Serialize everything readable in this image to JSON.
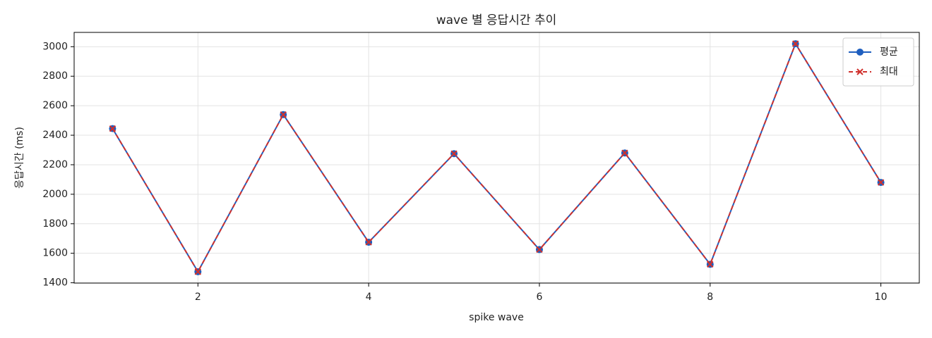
{
  "chart_data": {
    "type": "line",
    "title": "wave 별 응답시간 추이",
    "x_label": "spike wave",
    "y_label": "응답시간 (ms)",
    "x": [
      1,
      2,
      3,
      4,
      5,
      6,
      7,
      8,
      9,
      10
    ],
    "series": [
      {
        "name": "평균",
        "color": "#1f5fbf",
        "linestyle": "solid",
        "marker": "circle",
        "values": [
          2445,
          1475,
          2540,
          1675,
          2275,
          1625,
          2280,
          1525,
          3020,
          2080
        ]
      },
      {
        "name": "최대",
        "color": "#d0312d",
        "linestyle": "dashed",
        "marker": "x",
        "values": [
          2445,
          1475,
          2540,
          1675,
          2275,
          1625,
          2280,
          1525,
          3020,
          2080
        ]
      }
    ],
    "xlim": [
      0.55,
      10.45
    ],
    "ylim": [
      1398,
      3097
    ],
    "xticks": [
      2,
      4,
      6,
      8,
      10
    ],
    "yticks": [
      1400,
      1600,
      1800,
      2000,
      2200,
      2400,
      2600,
      2800,
      3000
    ],
    "grid": true,
    "legend": "upper-right"
  }
}
